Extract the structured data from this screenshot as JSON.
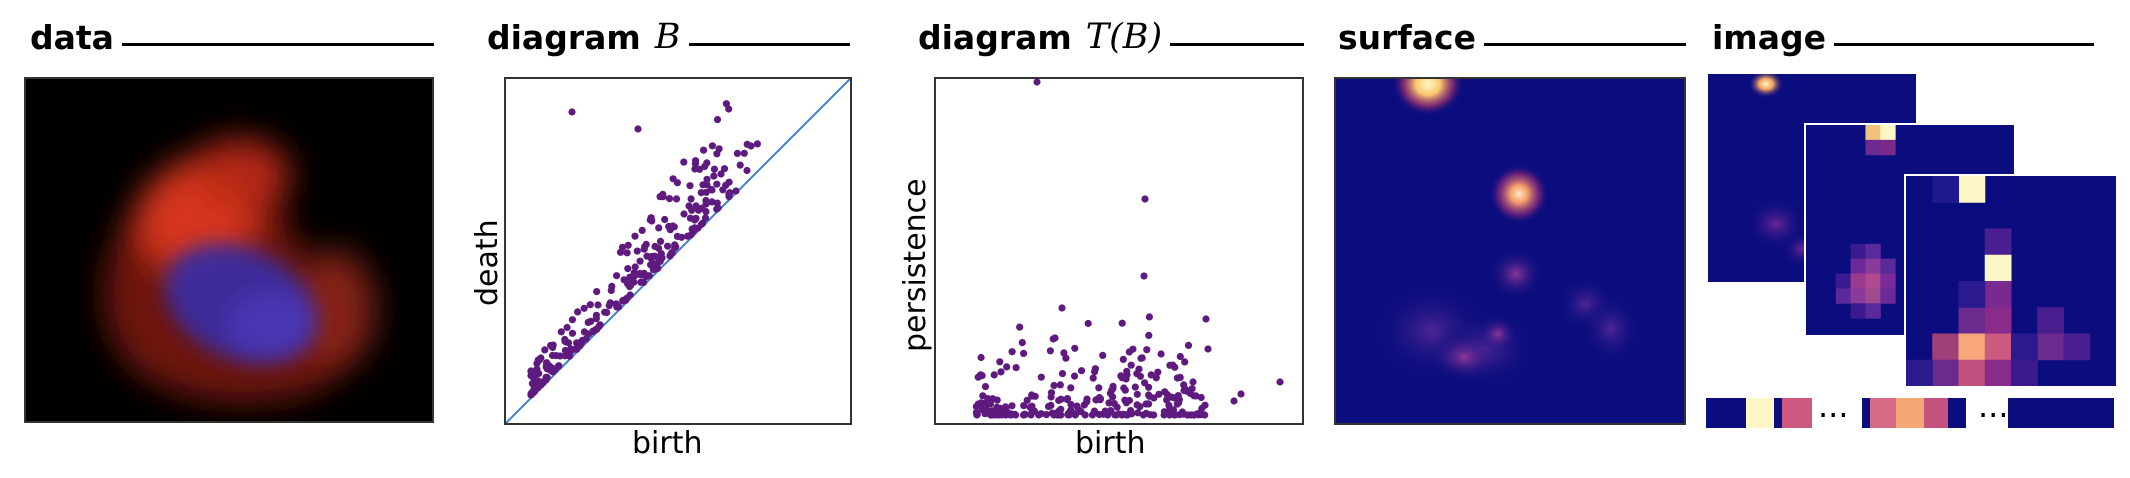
{
  "panels": {
    "data": {
      "title": "data"
    },
    "diagram": {
      "title": "diagram",
      "math": "B",
      "xlabel": "birth",
      "ylabel": "death"
    },
    "transformed": {
      "title": "diagram",
      "math": "T(B)",
      "xlabel": "birth",
      "ylabel": "persistence"
    },
    "surface": {
      "title": "surface"
    },
    "image": {
      "title": "image",
      "ellipsis_1": "···",
      "ellipsis_2": "···"
    }
  },
  "colors": {
    "points": "#5e1a7e",
    "diagonal": "#3f7fd0",
    "heat_background": "#0b0d7e",
    "data_red": "#e8321f",
    "data_blue": "#3a2aa0"
  }
}
